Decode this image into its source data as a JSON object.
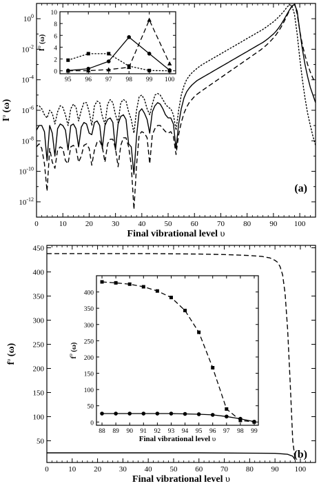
{
  "chart_data": [
    {
      "id": "a-main",
      "type": "line",
      "panel_label": "(a)",
      "xlabel": "Final vibrational level",
      "xlabel_symbol": "υ",
      "ylabel": "I",
      "ylabel_sup": "υ",
      "ylabel_suffix": "(ω)",
      "y_scale": "log",
      "xlim": [
        0,
        106
      ],
      "ylim_exp": [
        -13,
        1
      ],
      "x_ticks": [
        0,
        10,
        20,
        30,
        40,
        50,
        60,
        70,
        80,
        90,
        100
      ],
      "y_tick_exp": [
        -12,
        -10,
        -8,
        -6,
        -4,
        -2,
        0
      ],
      "series": [
        {
          "style": "solid",
          "x": [
            0,
            1,
            2,
            3,
            4,
            5,
            6,
            7,
            8,
            9,
            10,
            11,
            12,
            13,
            14,
            15,
            16,
            17,
            18,
            19,
            20,
            21,
            22,
            23,
            24,
            25,
            26,
            27,
            28,
            29,
            30,
            31,
            32,
            33,
            34,
            35,
            36,
            37,
            38,
            39,
            40,
            41,
            42,
            43,
            44,
            45,
            46,
            47,
            48,
            49,
            50,
            51,
            52,
            53,
            54,
            55,
            56,
            57,
            58,
            59,
            60,
            61,
            62,
            63,
            64,
            65,
            66,
            67,
            68,
            69,
            70,
            71,
            72,
            73,
            74,
            75,
            76,
            77,
            78,
            79,
            80,
            81,
            82,
            83,
            84,
            85,
            86,
            87,
            88,
            89,
            90,
            91,
            92,
            93,
            94,
            95,
            96,
            97,
            98,
            99,
            100,
            101,
            102,
            103,
            104,
            105,
            106
          ],
          "y": [
            -7.3,
            -7.0,
            -7.0,
            -7.4,
            -9.3,
            -7.0,
            -7.5,
            -9.0,
            -7.2,
            -6.9,
            -7.0,
            -7.3,
            -8.6,
            -7.0,
            -6.9,
            -7.2,
            -8.4,
            -7.1,
            -6.8,
            -6.9,
            -7.5,
            -7.6,
            -6.8,
            -6.7,
            -7.0,
            -8.5,
            -7.0,
            -6.6,
            -6.5,
            -6.8,
            -8.6,
            -6.9,
            -6.4,
            -6.3,
            -6.6,
            -8.2,
            -8.4,
            -10.2,
            -7.7,
            -6.1,
            -5.9,
            -6.2,
            -6.6,
            -7.5,
            -6.1,
            -5.7,
            -5.5,
            -5.6,
            -5.9,
            -6.3,
            -6.5,
            -6.5,
            -6.9,
            -8.5,
            -6.9,
            -5.9,
            -5.2,
            -4.8,
            -4.55,
            -4.35,
            -4.2,
            -4.05,
            -3.95,
            -3.85,
            -3.75,
            -3.65,
            -3.55,
            -3.45,
            -3.35,
            -3.25,
            -3.15,
            -3.05,
            -2.95,
            -2.85,
            -2.75,
            -2.65,
            -2.55,
            -2.45,
            -2.35,
            -2.25,
            -2.15,
            -2.05,
            -1.95,
            -1.85,
            -1.75,
            -1.65,
            -1.55,
            -1.43,
            -1.3,
            -1.15,
            -1.0,
            -0.82,
            -0.6,
            -0.35,
            -0.05,
            0.25,
            0.55,
            0.8,
            0.95,
            0.5,
            -0.8,
            -2.0,
            -3.0,
            -3.8,
            -4.5,
            -5.0,
            -5.5
          ]
        },
        {
          "style": "dashed",
          "x": [
            0,
            1,
            2,
            3,
            4,
            5,
            6,
            7,
            8,
            9,
            10,
            11,
            12,
            13,
            14,
            15,
            16,
            17,
            18,
            19,
            20,
            21,
            22,
            23,
            24,
            25,
            26,
            27,
            28,
            29,
            30,
            31,
            32,
            33,
            34,
            35,
            36,
            37,
            38,
            39,
            40,
            41,
            42,
            43,
            44,
            45,
            46,
            47,
            48,
            49,
            50,
            51,
            52,
            53,
            54,
            55,
            56,
            57,
            58,
            59,
            60,
            61,
            62,
            63,
            64,
            65,
            66,
            67,
            68,
            69,
            70,
            71,
            72,
            73,
            74,
            75,
            76,
            77,
            78,
            79,
            80,
            81,
            82,
            83,
            84,
            85,
            86,
            87,
            88,
            89,
            90,
            91,
            92,
            93,
            94,
            95,
            96,
            97,
            98,
            99,
            100,
            101,
            102,
            103,
            104,
            105,
            106
          ],
          "y": [
            -8.4,
            -8.2,
            -8.5,
            -9.5,
            -11.3,
            -8.5,
            -9.4,
            -9.8,
            -8.6,
            -8.4,
            -8.5,
            -9.3,
            -9.5,
            -8.4,
            -8.3,
            -8.5,
            -9.4,
            -9.0,
            -8.3,
            -8.2,
            -8.5,
            -9.6,
            -8.6,
            -8.1,
            -8.0,
            -8.4,
            -9.4,
            -8.2,
            -7.9,
            -7.9,
            -8.5,
            -9.7,
            -8.3,
            -7.8,
            -7.8,
            -8.4,
            -9.6,
            -12.5,
            -9.6,
            -7.6,
            -7.4,
            -7.5,
            -7.8,
            -9.5,
            -7.6,
            -7.2,
            -7.0,
            -7.0,
            -7.2,
            -7.4,
            -7.5,
            -7.4,
            -7.7,
            -8.9,
            -7.6,
            -6.8,
            -6.2,
            -5.8,
            -5.5,
            -5.3,
            -5.1,
            -4.95,
            -4.82,
            -4.7,
            -4.58,
            -4.46,
            -4.34,
            -4.22,
            -4.1,
            -3.98,
            -3.86,
            -3.74,
            -3.62,
            -3.5,
            -3.38,
            -3.26,
            -3.14,
            -3.02,
            -2.9,
            -2.78,
            -2.66,
            -2.54,
            -2.42,
            -2.3,
            -2.18,
            -2.06,
            -1.92,
            -1.78,
            -1.62,
            -1.45,
            -1.26,
            -1.05,
            -0.8,
            -0.52,
            -0.2,
            0.15,
            0.5,
            0.85,
            1.05,
            0.3,
            -0.8,
            -1.7,
            -2.4,
            -3.0,
            -3.5,
            -3.9,
            -4.2
          ]
        },
        {
          "style": "dotted",
          "x": [
            0,
            1,
            2,
            3,
            4,
            5,
            6,
            7,
            8,
            9,
            10,
            11,
            12,
            13,
            14,
            15,
            16,
            17,
            18,
            19,
            20,
            21,
            22,
            23,
            24,
            25,
            26,
            27,
            28,
            29,
            30,
            31,
            32,
            33,
            34,
            35,
            36,
            37,
            38,
            39,
            40,
            41,
            42,
            43,
            44,
            45,
            46,
            47,
            48,
            49,
            50,
            51,
            52,
            53,
            54,
            55,
            56,
            57,
            58,
            59,
            60,
            61,
            62,
            63,
            64,
            65,
            66,
            67,
            68,
            69,
            70,
            71,
            72,
            73,
            74,
            75,
            76,
            77,
            78,
            79,
            80,
            81,
            82,
            83,
            84,
            85,
            86,
            87,
            88,
            89,
            90,
            91,
            92,
            93,
            94,
            95,
            96,
            97,
            98,
            99,
            100,
            101,
            102,
            103,
            104,
            105,
            106
          ],
          "y": [
            -5.7,
            -5.7,
            -5.9,
            -6.3,
            -6.5,
            -6.0,
            -6.2,
            -6.9,
            -6.1,
            -5.7,
            -5.8,
            -6.3,
            -7.0,
            -5.9,
            -5.6,
            -5.8,
            -6.7,
            -6.0,
            -5.5,
            -5.5,
            -6.1,
            -7.0,
            -5.7,
            -5.4,
            -5.5,
            -6.4,
            -6.9,
            -5.6,
            -5.3,
            -5.5,
            -6.3,
            -6.8,
            -5.5,
            -5.3,
            -5.4,
            -6.1,
            -6.6,
            -7.5,
            -6.0,
            -5.1,
            -5.0,
            -5.3,
            -5.9,
            -6.3,
            -5.6,
            -5.0,
            -4.9,
            -5.0,
            -5.3,
            -5.6,
            -5.8,
            -5.9,
            -6.3,
            -7.3,
            -6.0,
            -5.0,
            -4.4,
            -4.0,
            -3.75,
            -3.55,
            -3.4,
            -3.25,
            -3.12,
            -3.0,
            -2.9,
            -2.8,
            -2.7,
            -2.6,
            -2.5,
            -2.4,
            -2.3,
            -2.2,
            -2.1,
            -2.0,
            -1.9,
            -1.8,
            -1.7,
            -1.6,
            -1.5,
            -1.4,
            -1.3,
            -1.2,
            -1.1,
            -1.0,
            -0.9,
            -0.8,
            -0.7,
            -0.58,
            -0.46,
            -0.33,
            -0.2,
            -0.05,
            0.12,
            0.3,
            0.5,
            0.72,
            0.92,
            0.85,
            0.3,
            -1.0,
            -2.6,
            -4.0,
            -5.2,
            -6.2,
            -7.0,
            -7.7,
            -8.3
          ]
        }
      ]
    },
    {
      "id": "a-inset",
      "type": "line",
      "xlabel": "",
      "ylabel": "I",
      "ylabel_sup": "υ",
      "ylabel_suffix": "(ω)",
      "xlim": [
        94.6,
        100.3
      ],
      "ylim": [
        -0.5,
        10
      ],
      "x_ticks": [
        95,
        96,
        97,
        98,
        99,
        100
      ],
      "y_ticks": [
        0,
        2,
        4,
        6,
        8,
        10
      ],
      "series": [
        {
          "style": "solid",
          "marker": "circle",
          "x": [
            95,
            96,
            97,
            98,
            99,
            100
          ],
          "y": [
            0.05,
            0.35,
            1.6,
            5.7,
            2.9,
            0.1
          ]
        },
        {
          "style": "dashed",
          "marker": "triangle",
          "x": [
            95,
            96,
            97,
            98,
            99,
            100
          ],
          "y": [
            0,
            0.02,
            0.2,
            0.6,
            8.6,
            1.2
          ]
        },
        {
          "style": "dotted",
          "marker": "square",
          "x": [
            95,
            96,
            97,
            98,
            99,
            100
          ],
          "y": [
            1.8,
            2.9,
            2.9,
            0.8,
            0.05,
            0
          ]
        }
      ]
    },
    {
      "id": "b-main",
      "type": "line",
      "panel_label": "(b)",
      "xlabel": "Final vibrational level",
      "xlabel_symbol": "υ",
      "ylabel": "f",
      "ylabel_sup": "υ",
      "ylabel_suffix": "(ω)",
      "xlim": [
        0,
        106
      ],
      "ylim": [
        5,
        455
      ],
      "x_ticks": [
        0,
        10,
        20,
        30,
        40,
        50,
        60,
        70,
        80,
        90,
        100
      ],
      "y_ticks": [
        50,
        100,
        150,
        200,
        250,
        300,
        350,
        400,
        450
      ],
      "series": [
        {
          "style": "dashed",
          "x": [
            0,
            20,
            40,
            60,
            70,
            80,
            85,
            88,
            90,
            91,
            92,
            93,
            94,
            95,
            96,
            97,
            98
          ],
          "y": [
            438,
            438,
            438,
            437,
            436,
            434,
            432,
            429,
            424,
            420,
            411,
            394,
            355,
            280,
            170,
            50,
            8
          ]
        },
        {
          "style": "solid",
          "x": [
            0,
            20,
            40,
            60,
            80,
            90,
            95,
            97,
            98
          ],
          "y": [
            25,
            25,
            25,
            25,
            24.5,
            24,
            22,
            18,
            10
          ]
        }
      ]
    },
    {
      "id": "b-inset",
      "type": "line",
      "xlabel": "Final vibrational level",
      "xlabel_symbol": "υ",
      "ylabel": "f",
      "ylabel_sup": "υ",
      "ylabel_suffix": "(ω)",
      "xlim": [
        87.6,
        99.3
      ],
      "ylim": [
        -10,
        450
      ],
      "x_ticks": [
        88,
        89,
        90,
        91,
        92,
        93,
        94,
        95,
        96,
        97,
        98,
        99
      ],
      "y_ticks": [
        0,
        50,
        100,
        150,
        200,
        250,
        300,
        350,
        400
      ],
      "series": [
        {
          "style": "dashed",
          "marker": "square",
          "x": [
            88,
            89,
            90,
            91,
            92,
            93,
            94,
            95,
            96,
            97,
            98,
            99
          ],
          "y": [
            431,
            428,
            424,
            416,
            403,
            383,
            343,
            276,
            167,
            40,
            5,
            0
          ]
        },
        {
          "style": "solid",
          "marker": "circle",
          "x": [
            88,
            89,
            90,
            91,
            92,
            93,
            94,
            95,
            96,
            97,
            98,
            99
          ],
          "y": [
            26,
            26,
            26,
            26,
            26,
            26,
            25,
            24,
            22,
            17,
            10,
            1
          ]
        }
      ]
    }
  ]
}
